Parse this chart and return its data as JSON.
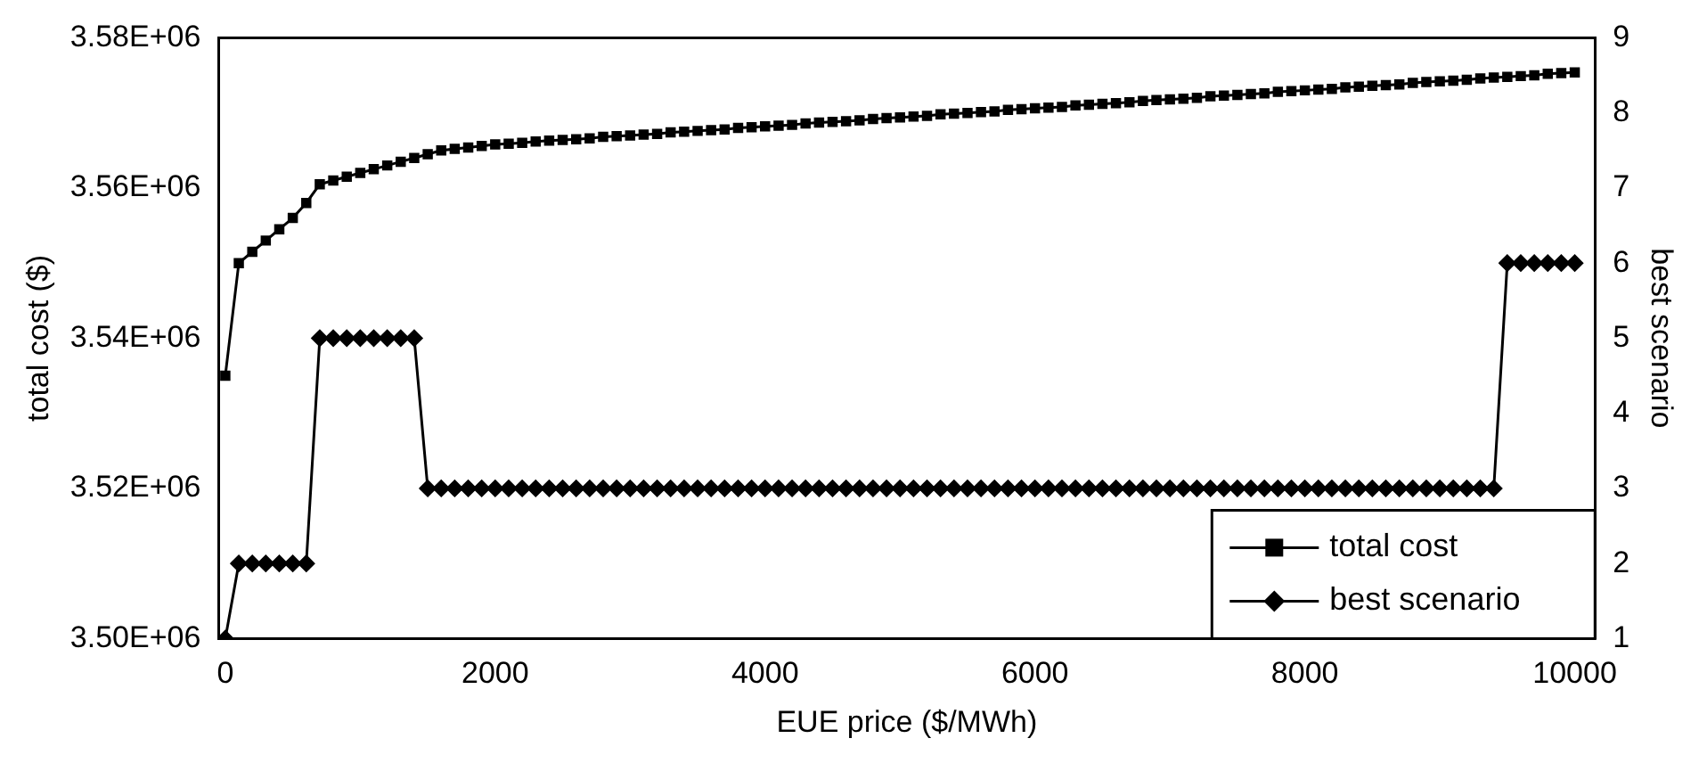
{
  "chart_data": {
    "type": "line",
    "xlabel": "EUE price ($/MWh)",
    "ylabel": "total cost ($)",
    "y2label": "best scenario",
    "x": [
      0,
      100,
      200,
      300,
      400,
      500,
      600,
      700,
      800,
      900,
      1000,
      1100,
      1200,
      1300,
      1400,
      1500,
      1600,
      1700,
      1800,
      1900,
      2000,
      2100,
      2200,
      2300,
      2400,
      2500,
      2600,
      2700,
      2800,
      2900,
      3000,
      3100,
      3200,
      3300,
      3400,
      3500,
      3600,
      3700,
      3800,
      3900,
      4000,
      4100,
      4200,
      4300,
      4400,
      4500,
      4600,
      4700,
      4800,
      4900,
      5000,
      5100,
      5200,
      5300,
      5400,
      5500,
      5600,
      5700,
      5800,
      5900,
      6000,
      6100,
      6200,
      6300,
      6400,
      6500,
      6600,
      6700,
      6800,
      6900,
      7000,
      7100,
      7200,
      7300,
      7400,
      7500,
      7600,
      7700,
      7800,
      7900,
      8000,
      8100,
      8200,
      8300,
      8400,
      8500,
      8600,
      8700,
      8800,
      8900,
      9000,
      9100,
      9200,
      9300,
      9400,
      9500,
      9600,
      9700,
      9800,
      9900,
      10000
    ],
    "series": [
      {
        "name": "total cost",
        "color": "#000000",
        "marker": "square",
        "values": [
          3535000,
          3550000,
          3551500,
          3553000,
          3554500,
          3556000,
          3558000,
          3560500,
          3561000,
          3561500,
          3562000,
          3562500,
          3563000,
          3563500,
          3564000,
          3564500,
          3565000,
          3565200,
          3565400,
          3565600,
          3565800,
          3565900,
          3566000,
          3566200,
          3566300,
          3566400,
          3566500,
          3566600,
          3566800,
          3566900,
          3567000,
          3567100,
          3567200,
          3567400,
          3567500,
          3567600,
          3567700,
          3567800,
          3568000,
          3568100,
          3568200,
          3568300,
          3568400,
          3568600,
          3568700,
          3568800,
          3568900,
          3569000,
          3569200,
          3569300,
          3569400,
          3569500,
          3569600,
          3569800,
          3569900,
          3570000,
          3570100,
          3570200,
          3570400,
          3570500,
          3570600,
          3570700,
          3570800,
          3571000,
          3571100,
          3571200,
          3571300,
          3571400,
          3571600,
          3571700,
          3571800,
          3571900,
          3572000,
          3572200,
          3572300,
          3572400,
          3572500,
          3572600,
          3572800,
          3572900,
          3573000,
          3573100,
          3573200,
          3573400,
          3573500,
          3573600,
          3573700,
          3573800,
          3574000,
          3574100,
          3574200,
          3574300,
          3574400,
          3574600,
          3574700,
          3574800,
          3574900,
          3575000,
          3575200,
          3575300,
          3575400
        ]
      },
      {
        "name": "best scenario",
        "color": "#000000",
        "marker": "diamond",
        "axis": "y2",
        "values": [
          1,
          2,
          2,
          2,
          2,
          2,
          2,
          5,
          5,
          5,
          5,
          5,
          5,
          5,
          5,
          3,
          3,
          3,
          3,
          3,
          3,
          3,
          3,
          3,
          3,
          3,
          3,
          3,
          3,
          3,
          3,
          3,
          3,
          3,
          3,
          3,
          3,
          3,
          3,
          3,
          3,
          3,
          3,
          3,
          3,
          3,
          3,
          3,
          3,
          3,
          3,
          3,
          3,
          3,
          3,
          3,
          3,
          3,
          3,
          3,
          3,
          3,
          3,
          3,
          3,
          3,
          3,
          3,
          3,
          3,
          3,
          3,
          3,
          3,
          3,
          3,
          3,
          3,
          3,
          3,
          3,
          3,
          3,
          3,
          3,
          3,
          3,
          3,
          3,
          3,
          3,
          3,
          3,
          3,
          3,
          6,
          6,
          6,
          6,
          6,
          6
        ]
      }
    ],
    "xlim": [
      -50,
      10150
    ],
    "xticks": [
      0,
      2000,
      4000,
      6000,
      8000,
      10000
    ],
    "ylim": [
      3500000,
      3580000
    ],
    "yticks": [
      {
        "value": 3500000,
        "label": "3.50E+06"
      },
      {
        "value": 3520000,
        "label": "3.52E+06"
      },
      {
        "value": 3540000,
        "label": "3.54E+06"
      },
      {
        "value": 3560000,
        "label": "3.56E+06"
      },
      {
        "value": 3580000,
        "label": "3.58E+06"
      }
    ],
    "y2lim": [
      1,
      9
    ],
    "y2ticks": [
      1,
      2,
      3,
      4,
      5,
      6,
      7,
      8,
      9
    ],
    "grid": false,
    "legend": "bottom right",
    "line_style": "solid"
  }
}
